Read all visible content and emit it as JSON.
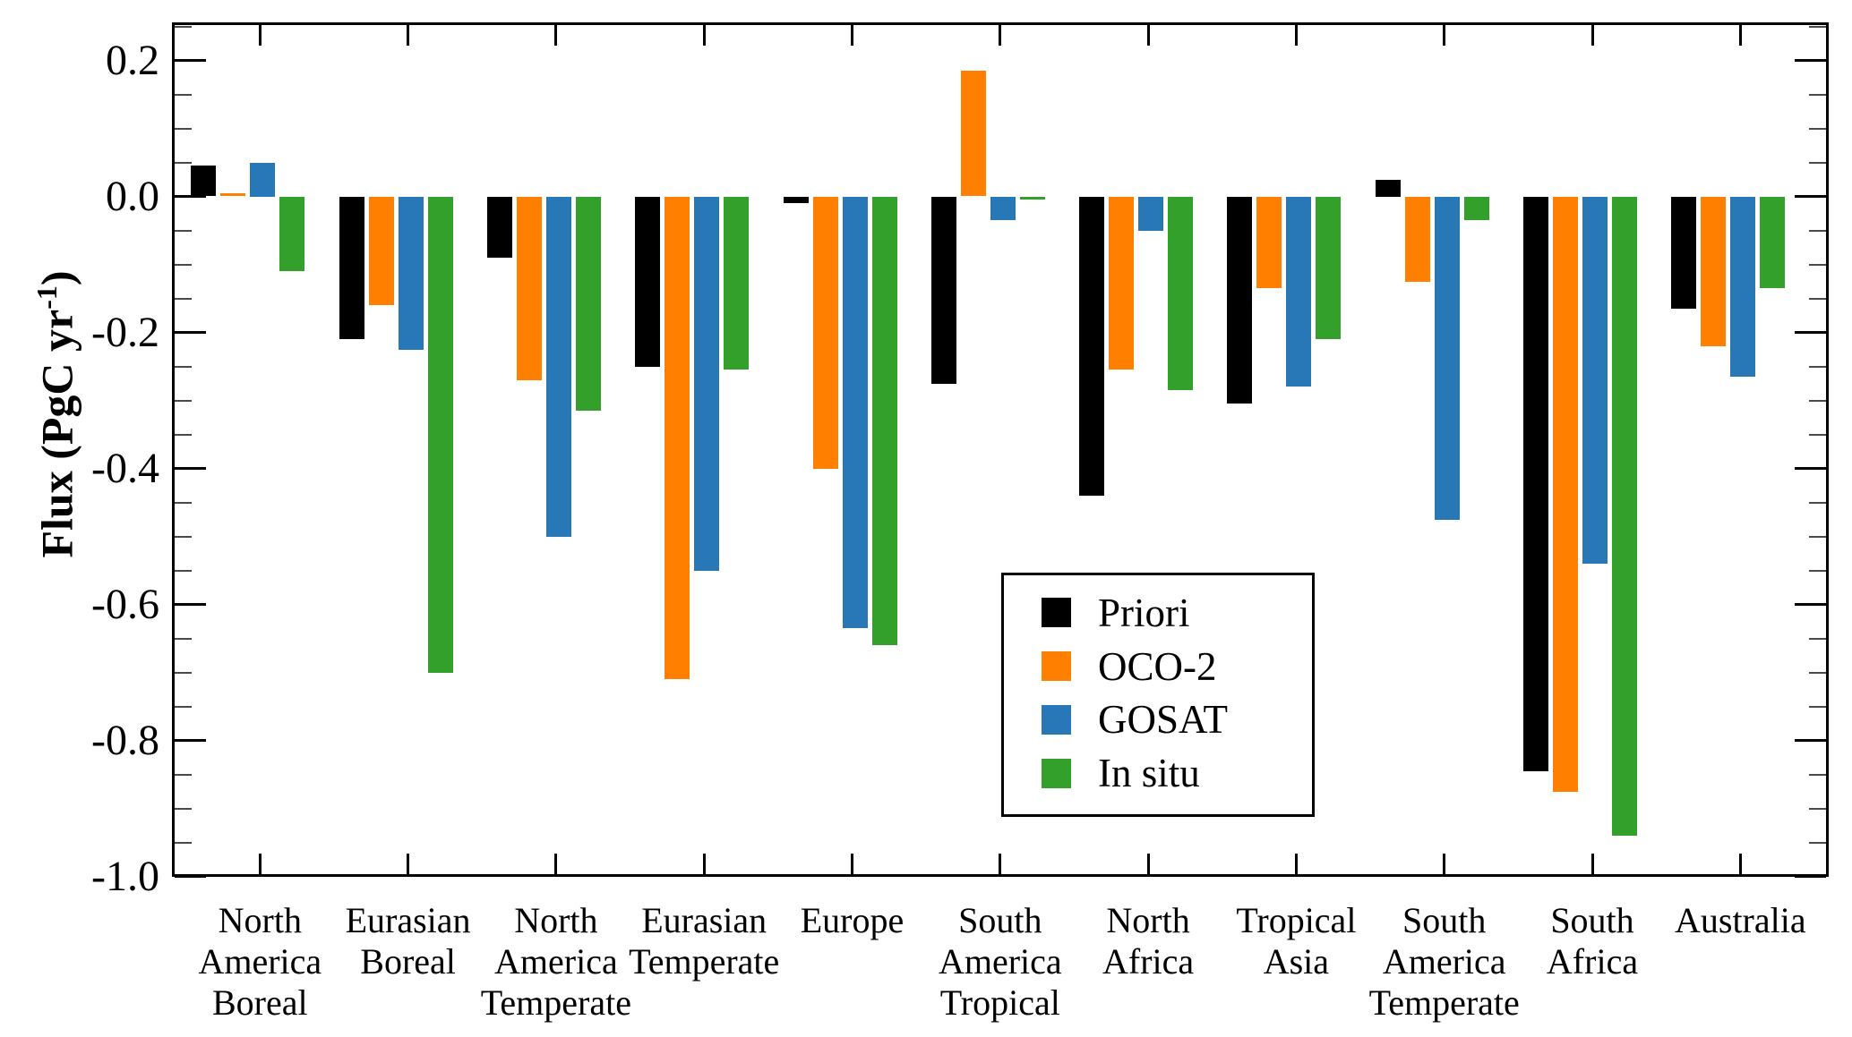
{
  "chart_data": {
    "type": "bar",
    "title": "",
    "ylabel": {
      "pre": "Flux (PgC yr",
      "sup": "-1",
      "post": ")"
    },
    "categories": [
      "North America Boreal",
      "Eurasian Boreal",
      "North America Temperate",
      "Eurasian Temperate",
      "Europe",
      "South America Tropical",
      "North Africa",
      "Tropical Asia",
      "South America Temperate",
      "South Africa",
      "Australia"
    ],
    "category_label_lines": [
      [
        "North",
        "America",
        "Boreal"
      ],
      [
        "Eurasian",
        "Boreal"
      ],
      [
        "North",
        "America",
        "Temperate"
      ],
      [
        "Eurasian",
        "Temperate"
      ],
      [
        "Europe"
      ],
      [
        "South",
        "America",
        "Tropical"
      ],
      [
        "North",
        "Africa"
      ],
      [
        "Tropical",
        "Asia"
      ],
      [
        "South",
        "America",
        "Temperate"
      ],
      [
        "South",
        "Africa"
      ],
      [
        "Australia"
      ]
    ],
    "series": [
      {
        "name": "Priori",
        "color": "#000000",
        "values": [
          0.045,
          -0.21,
          -0.09,
          -0.25,
          -0.01,
          -0.275,
          -0.44,
          -0.305,
          0.025,
          -0.845,
          -0.165
        ]
      },
      {
        "name": "OCO-2",
        "color": "#ff8000",
        "values": [
          0.005,
          -0.16,
          -0.27,
          -0.71,
          -0.4,
          0.185,
          -0.255,
          -0.135,
          -0.125,
          -0.875,
          -0.22
        ]
      },
      {
        "name": "GOSAT",
        "color": "#2878b8",
        "values": [
          0.05,
          -0.225,
          -0.5,
          -0.55,
          -0.635,
          -0.035,
          -0.05,
          -0.28,
          -0.475,
          -0.54,
          -0.265
        ]
      },
      {
        "name": "In situ",
        "color": "#33a02c",
        "values": [
          -0.11,
          -0.7,
          -0.315,
          -0.255,
          -0.66,
          -0.005,
          -0.285,
          -0.21,
          -0.035,
          -0.94,
          -0.135
        ]
      }
    ],
    "y_axis": {
      "min": -1.0,
      "max": 0.256,
      "major_step": 0.2,
      "minor_step": 0.05,
      "major_tick_values": [
        0.2,
        0.0,
        -0.2,
        -0.4,
        -0.6,
        -0.8,
        -1.0
      ],
      "major_tick_labels": [
        "0.2",
        "0.0",
        "-0.2",
        "-0.4",
        "-0.6",
        "-0.8",
        "-1.0"
      ]
    },
    "legend": {
      "position": "inside-center-right"
    },
    "grid": "off"
  }
}
